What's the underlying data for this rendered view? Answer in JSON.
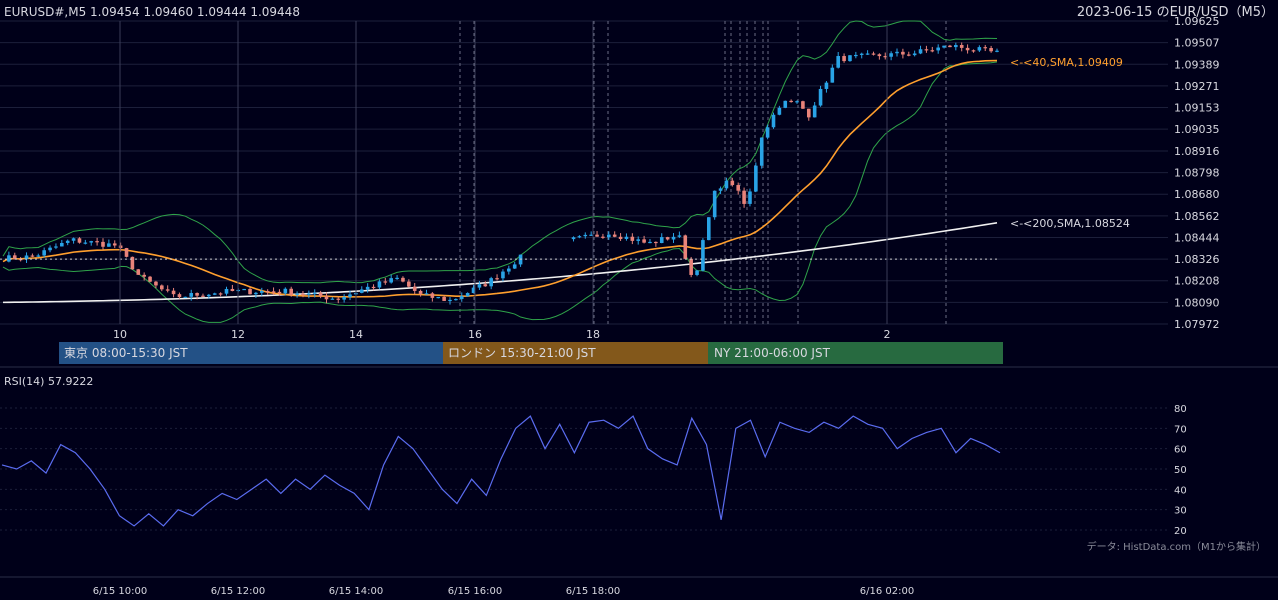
{
  "header": {
    "symbol_info": "EURUSD#,M5 1.09454 1.09460 1.09444 1.09448",
    "title": "2023-06-15 のEUR/USD（M5）"
  },
  "colors": {
    "background": "#000019",
    "bull": "#29a3e6",
    "bear": "#e8837a",
    "sma40": "#ff9f2e",
    "sma200": "#f0f0f0",
    "bollinger": "#2fa34a",
    "rsi": "#5a6cf0",
    "grid": "#1c1f3a",
    "tokyo": "#235186",
    "london": "#83581b",
    "ny": "#276a40"
  },
  "chart_data": [
    {
      "type": "candlestick",
      "title": "EURUSD#,M5",
      "price_ticks": [
        "1.09625",
        "1.09507",
        "1.09389",
        "1.09271",
        "1.09153",
        "1.09035",
        "1.08916",
        "1.08798",
        "1.08680",
        "1.08562",
        "1.08444",
        "1.08326",
        "1.08208",
        "1.08090",
        "1.07972"
      ],
      "ylim": [
        1.07972,
        1.09625
      ],
      "x_ticks": [
        "10",
        "12",
        "14",
        "16",
        "18",
        "2"
      ],
      "reference_price": 1.08326,
      "indicators": [
        {
          "name": "SMA 40",
          "label": "<-<40,SMA,1.09409",
          "last": 1.09409
        },
        {
          "name": "SMA 200",
          "label": "<-<200,SMA,1.08524",
          "last": 1.08524
        },
        {
          "name": "Bollinger Bands"
        }
      ],
      "candles_summary": {
        "open": 1.0833,
        "high": 1.09507,
        "low": 1.0809,
        "close": 1.09448
      },
      "sessions": [
        {
          "label": "東京 08:00-15:30 JST"
        },
        {
          "label": "ロンドン 15:30-21:00 JST"
        },
        {
          "label": "NY 21:00-06:00 JST"
        }
      ]
    },
    {
      "type": "line",
      "title": "RSI(14) 57.9222",
      "y_ticks": [
        "80",
        "70",
        "60",
        "50",
        "40",
        "30",
        "20"
      ],
      "ylim": [
        20,
        80
      ],
      "x_ticks": [
        "6/15 10:00",
        "6/15 12:00",
        "6/15 14:00",
        "6/15 16:00",
        "6/15 18:00",
        "6/16 02:00"
      ],
      "series": [
        {
          "values": [
            52,
            50,
            54,
            48,
            62,
            58,
            50,
            40,
            27,
            22,
            28,
            22,
            30,
            27,
            33,
            38,
            35,
            40,
            45,
            38,
            45,
            40,
            47,
            42,
            38,
            30,
            52,
            66,
            60,
            50,
            40,
            33,
            45,
            37,
            55,
            70,
            76,
            60,
            72,
            58,
            73,
            74,
            70,
            76,
            60,
            55,
            52,
            75,
            62,
            25,
            70,
            74,
            56,
            73,
            70,
            68,
            73,
            70,
            76,
            72,
            70,
            60,
            65,
            68,
            70,
            58,
            65,
            62,
            58
          ]
        }
      ]
    }
  ],
  "footer": {
    "data_source": "データ: HistData.com（M1から集計）"
  }
}
